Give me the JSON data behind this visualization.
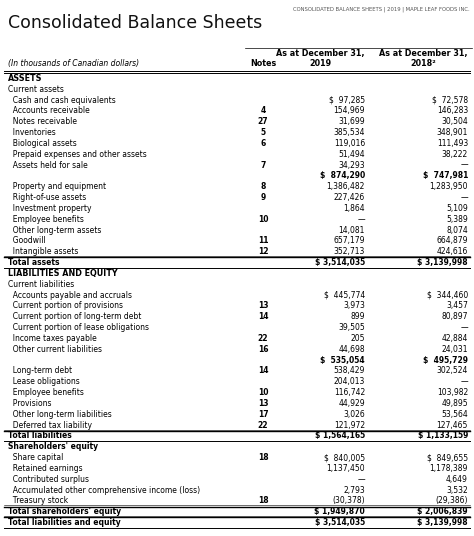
{
  "header_line1": "CONSOLIDATED BALANCE SHEETS | 2019 | MAPLE LEAF FOODS INC.",
  "title": "Consolidated Balance Sheets",
  "subtitle": "(In thousands of Canadian dollars)",
  "rows": [
    {
      "label": "ASSETS",
      "note": "",
      "val2019": "",
      "val2018": "",
      "style": "header"
    },
    {
      "label": "Current assets",
      "note": "",
      "val2019": "",
      "val2018": "",
      "style": "subheader"
    },
    {
      "label": "  Cash and cash equivalents",
      "note": "",
      "val2019": "$  97,285",
      "val2018": "$  72,578",
      "style": "normal_dollar"
    },
    {
      "label": "  Accounts receivable",
      "note": "4",
      "val2019": "154,969",
      "val2018": "146,283",
      "style": "normal"
    },
    {
      "label": "  Notes receivable",
      "note": "27",
      "val2019": "31,699",
      "val2018": "30,504",
      "style": "normal"
    },
    {
      "label": "  Inventories",
      "note": "5",
      "val2019": "385,534",
      "val2018": "348,901",
      "style": "normal"
    },
    {
      "label": "  Biological assets",
      "note": "6",
      "val2019": "119,016",
      "val2018": "111,493",
      "style": "normal"
    },
    {
      "label": "  Prepaid expenses and other assets",
      "note": "",
      "val2019": "51,494",
      "val2018": "38,222",
      "style": "normal"
    },
    {
      "label": "  Assets held for sale",
      "note": "7",
      "val2019": "34,293",
      "val2018": "—",
      "style": "normal_bottom"
    },
    {
      "label": "",
      "note": "",
      "val2019": "$  874,290",
      "val2018": "$  747,981",
      "style": "subtotal"
    },
    {
      "label": "  Property and equipment",
      "note": "8",
      "val2019": "1,386,482",
      "val2018": "1,283,950",
      "style": "normal"
    },
    {
      "label": "  Right-of-use assets",
      "note": "9",
      "val2019": "227,426",
      "val2018": "—",
      "style": "normal"
    },
    {
      "label": "  Investment property",
      "note": "",
      "val2019": "1,864",
      "val2018": "5,109",
      "style": "normal"
    },
    {
      "label": "  Employee benefits",
      "note": "10",
      "val2019": "—",
      "val2018": "5,389",
      "style": "normal"
    },
    {
      "label": "  Other long-term assets",
      "note": "",
      "val2019": "14,081",
      "val2018": "8,074",
      "style": "normal"
    },
    {
      "label": "  Goodwill",
      "note": "11",
      "val2019": "657,179",
      "val2018": "664,879",
      "style": "normal"
    },
    {
      "label": "  Intangible assets",
      "note": "12",
      "val2019": "352,713",
      "val2018": "424,616",
      "style": "normal_bottom"
    },
    {
      "label": "Total assets",
      "note": "",
      "val2019": "$ 3,514,035",
      "val2018": "$ 3,139,998",
      "style": "total"
    },
    {
      "label": "LIABILITIES AND EQUITY",
      "note": "",
      "val2019": "",
      "val2018": "",
      "style": "header"
    },
    {
      "label": "Current liabilities",
      "note": "",
      "val2019": "",
      "val2018": "",
      "style": "subheader"
    },
    {
      "label": "  Accounts payable and accruals",
      "note": "",
      "val2019": "$  445,774",
      "val2018": "$  344,460",
      "style": "normal_dollar"
    },
    {
      "label": "  Current portion of provisions",
      "note": "13",
      "val2019": "3,973",
      "val2018": "3,457",
      "style": "normal"
    },
    {
      "label": "  Current portion of long-term debt",
      "note": "14",
      "val2019": "899",
      "val2018": "80,897",
      "style": "normal"
    },
    {
      "label": "  Current portion of lease obligations",
      "note": "",
      "val2019": "39,505",
      "val2018": "—",
      "style": "normal"
    },
    {
      "label": "  Income taxes payable",
      "note": "22",
      "val2019": "205",
      "val2018": "42,884",
      "style": "normal"
    },
    {
      "label": "  Other current liabilities",
      "note": "16",
      "val2019": "44,698",
      "val2018": "24,031",
      "style": "normal_bottom"
    },
    {
      "label": "",
      "note": "",
      "val2019": "$  535,054",
      "val2018": "$  495,729",
      "style": "subtotal"
    },
    {
      "label": "  Long-term debt",
      "note": "14",
      "val2019": "538,429",
      "val2018": "302,524",
      "style": "normal"
    },
    {
      "label": "  Lease obligations",
      "note": "",
      "val2019": "204,013",
      "val2018": "—",
      "style": "normal"
    },
    {
      "label": "  Employee benefits",
      "note": "10",
      "val2019": "116,742",
      "val2018": "103,982",
      "style": "normal"
    },
    {
      "label": "  Provisions",
      "note": "13",
      "val2019": "44,929",
      "val2018": "49,895",
      "style": "normal"
    },
    {
      "label": "  Other long-term liabilities",
      "note": "17",
      "val2019": "3,026",
      "val2018": "53,564",
      "style": "normal"
    },
    {
      "label": "  Deferred tax liability",
      "note": "22",
      "val2019": "121,972",
      "val2018": "127,465",
      "style": "normal_bottom"
    },
    {
      "label": "Total liabilities",
      "note": "",
      "val2019": "$ 1,564,165",
      "val2018": "$ 1,133,159",
      "style": "total"
    },
    {
      "label": "Shareholders' equity",
      "note": "",
      "val2019": "",
      "val2018": "",
      "style": "subheader_bold"
    },
    {
      "label": "  Share capital",
      "note": "18",
      "val2019": "$  840,005",
      "val2018": "$  849,655",
      "style": "normal_dollar"
    },
    {
      "label": "  Retained earnings",
      "note": "",
      "val2019": "1,137,450",
      "val2018": "1,178,389",
      "style": "normal"
    },
    {
      "label": "  Contributed surplus",
      "note": "",
      "val2019": "—",
      "val2018": "4,649",
      "style": "normal"
    },
    {
      "label": "  Accumulated other comprehensive income (loss)",
      "note": "",
      "val2019": "2,793",
      "val2018": "3,532",
      "style": "normal"
    },
    {
      "label": "  Treasury stock",
      "note": "18",
      "val2019": "(30,378)",
      "val2018": "(29,386)",
      "style": "normal_bottom"
    },
    {
      "label": "Total shareholders' equity",
      "note": "",
      "val2019": "$ 1,949,870",
      "val2018": "$ 2,006,839",
      "style": "total"
    },
    {
      "label": "Total liabilities and equity",
      "note": "",
      "val2019": "$ 3,514,035",
      "val2018": "$ 3,139,998",
      "style": "total_last"
    }
  ],
  "bg_color": "#ffffff",
  "text_color": "#000000"
}
